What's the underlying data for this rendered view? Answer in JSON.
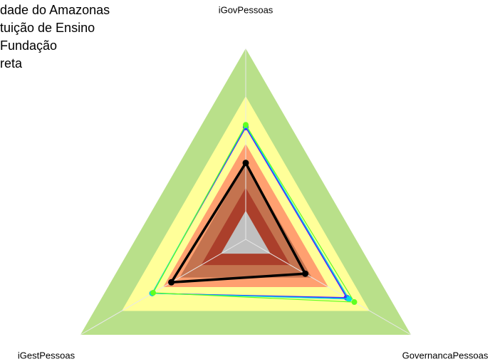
{
  "chart_data": {
    "type": "radar",
    "axes": [
      "iGovPessoas",
      "GovernancaPessoas",
      "iGestPessoas"
    ],
    "rlim": [
      0,
      1
    ],
    "bands": [
      {
        "value": 1,
        "color": "#b9e08a"
      },
      {
        "value": 0.75,
        "color": "#ffff99"
      },
      {
        "value": 0.5,
        "color": "#ffa070"
      },
      {
        "value": 0.4,
        "color": "#c4734f"
      },
      {
        "value": 0.27,
        "color": "#ab3f2b"
      },
      {
        "value": 0.15,
        "color": "#c0c0c0"
      }
    ],
    "series": [
      {
        "name": "dade do Amazonas",
        "color": "#7f00ff",
        "values": [
          0.586,
          0.61,
          0.566
        ]
      },
      {
        "name": "tuição de Ensino",
        "color": "#2050ff",
        "values": [
          0.59,
          0.615,
          0.565
        ]
      },
      {
        "name": "Fundação",
        "color": "#00e0e0",
        "values": [
          0.597,
          0.625,
          0.566
        ]
      },
      {
        "name": "reta",
        "color": "#60ff20",
        "values": [
          0.6,
          0.657,
          0.56
        ]
      },
      {
        "color": "#000000",
        "values": [
          0.4,
          0.36,
          0.45
        ]
      }
    ]
  }
}
